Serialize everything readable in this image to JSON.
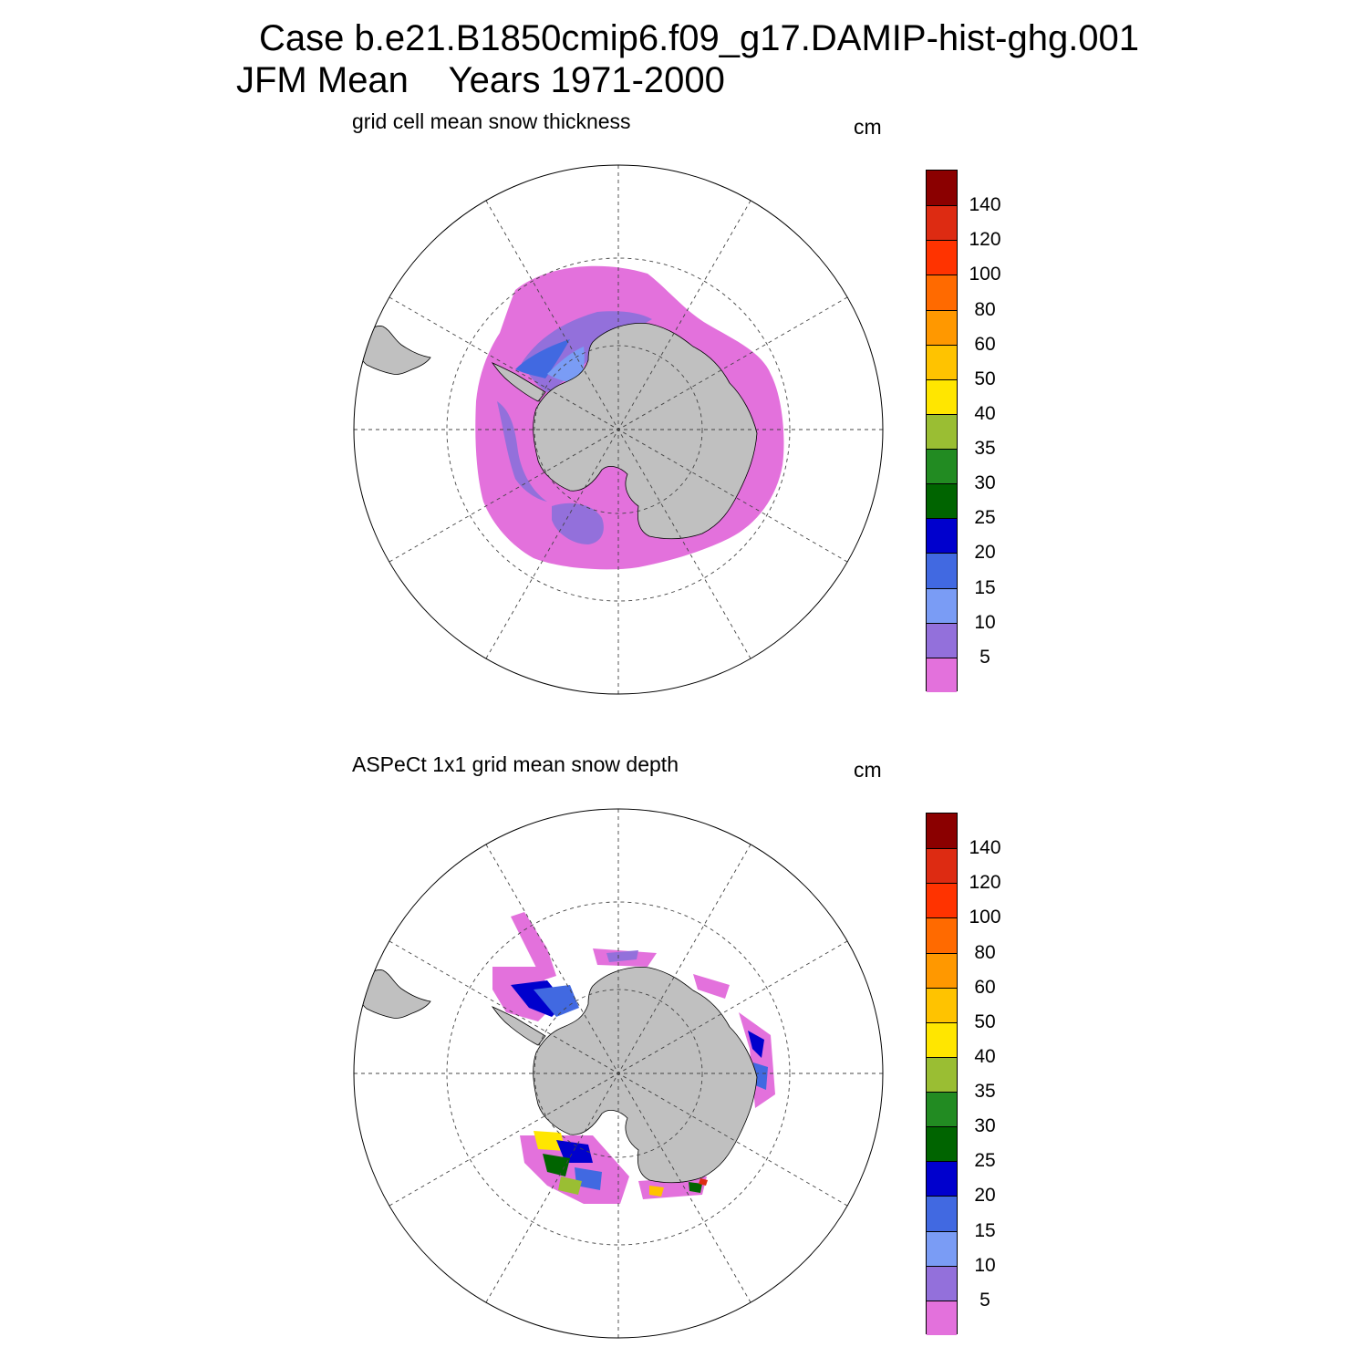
{
  "title_line1": "Case b.e21.B1850cmip6.f09_g17.DAMIP-hist-ghg.001",
  "title_line2_season": "JFM Mean",
  "title_line2_years": "Years 1971-2000",
  "panels": [
    {
      "title": "grid cell mean snow thickness",
      "units": "cm"
    },
    {
      "title": "ASPeCt 1x1 grid mean snow depth",
      "units": "cm"
    }
  ],
  "colorbar": {
    "levels": [
      "5",
      "10",
      "15",
      "20",
      "25",
      "30",
      "35",
      "40",
      "50",
      "60",
      "80",
      "100",
      "120",
      "140"
    ],
    "colors": [
      "#e371dc",
      "#9370db",
      "#7a9cf5",
      "#4169e1",
      "#0000cd",
      "#006400",
      "#228b22",
      "#9abe33",
      "#ffe600",
      "#ffc300",
      "#ff9800",
      "#ff6a00",
      "#ff3300",
      "#dd2b12",
      "#8b0000"
    ]
  },
  "map_colors": {
    "ocean": "#ffffff",
    "land": "#c0c0c0"
  }
}
